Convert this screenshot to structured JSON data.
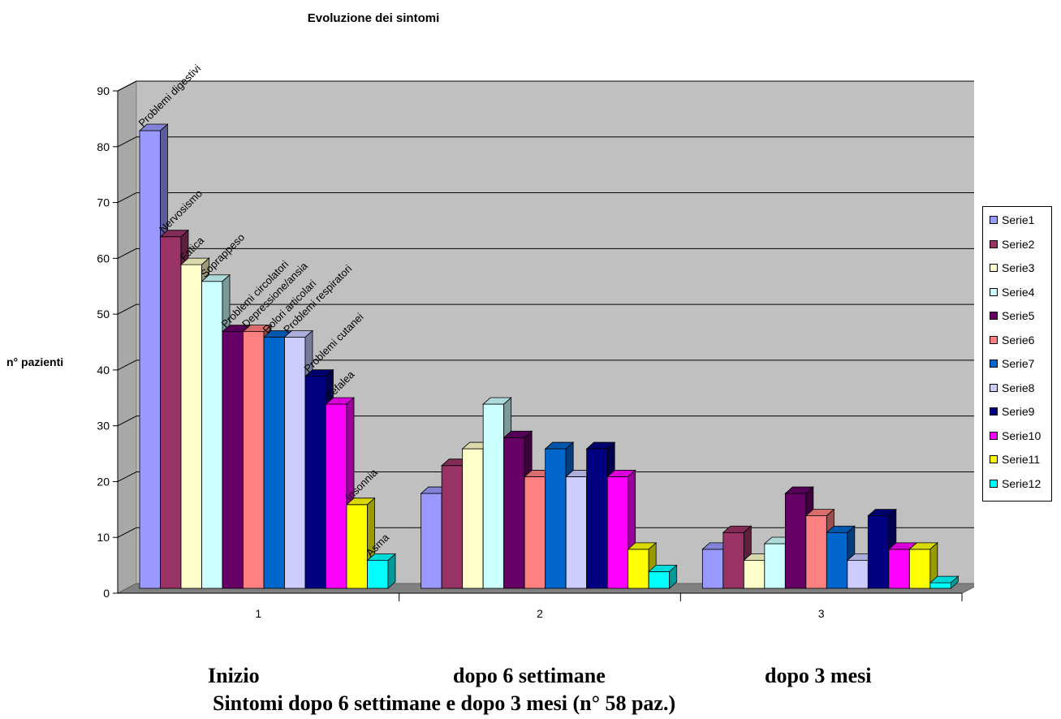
{
  "chart_data": {
    "type": "bar",
    "title": "Evoluzione dei sintomi",
    "ylabel": "n° pazienti",
    "xlabel": "",
    "ylim": [
      0,
      90
    ],
    "yticks": [
      "0",
      "10",
      "20",
      "30",
      "40",
      "50",
      "60",
      "70",
      "80",
      "90"
    ],
    "categories": [
      "1",
      "2",
      "3"
    ],
    "grid": true,
    "legend_position": "right",
    "series": [
      {
        "name": "Serie1",
        "color": "#9999ff",
        "label": "Problemi digestivi",
        "values": [
          82,
          17,
          7
        ]
      },
      {
        "name": "Serie2",
        "color": "#993366",
        "label": "Nervosismo",
        "values": [
          63,
          22,
          10
        ]
      },
      {
        "name": "Serie3",
        "color": "#ffffcc",
        "label": "Fatica",
        "values": [
          58,
          25,
          5
        ]
      },
      {
        "name": "Serie4",
        "color": "#ccffff",
        "label": "Soprappeso",
        "values": [
          55,
          33,
          8
        ]
      },
      {
        "name": "Serie5",
        "color": "#660066",
        "label": "Problemi circolatori",
        "values": [
          46,
          27,
          17
        ]
      },
      {
        "name": "Serie6",
        "color": "#ff8080",
        "label": "Depressione/ansia",
        "values": [
          46,
          20,
          13
        ]
      },
      {
        "name": "Serie7",
        "color": "#0066cc",
        "label": "Dolori articolari",
        "values": [
          45,
          25,
          10
        ]
      },
      {
        "name": "Serie8",
        "color": "#ccccff",
        "label": "Problemi respiratori",
        "values": [
          45,
          20,
          5
        ]
      },
      {
        "name": "Serie9",
        "color": "#000080",
        "label": "Problemi cutanei",
        "values": [
          38,
          25,
          13
        ]
      },
      {
        "name": "Serie10",
        "color": "#ff00ff",
        "label": "Cefalea",
        "values": [
          33,
          20,
          7
        ]
      },
      {
        "name": "Serie11",
        "color": "#ffff00",
        "label": "Insonnia",
        "values": [
          15,
          7,
          7
        ]
      },
      {
        "name": "Serie12",
        "color": "#00ffff",
        "label": "Asma",
        "values": [
          5,
          3,
          1
        ]
      }
    ]
  },
  "captions": {
    "phase1": "Inizio",
    "phase2": "dopo 6 settimane",
    "phase3": "dopo 3 mesi",
    "subtitle": "Sintomi dopo 6 settimane e dopo 3 mesi  (n° 58 paz.)"
  }
}
